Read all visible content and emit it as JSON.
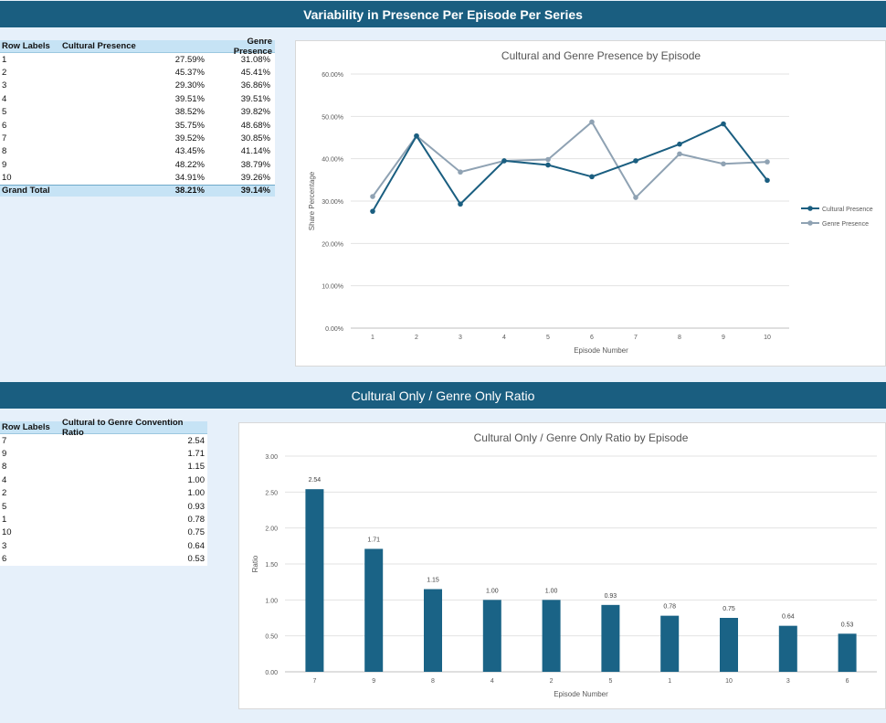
{
  "banners": {
    "top": "Variability in Presence Per Episode Per Series",
    "bottom": "Cultural Only / Genre Only Ratio"
  },
  "presence_table": {
    "headers": [
      "Row Labels",
      "Cultural Presence",
      "Genre Presence"
    ],
    "rows": [
      [
        "1",
        "27.59%",
        "31.08%"
      ],
      [
        "2",
        "45.37%",
        "45.41%"
      ],
      [
        "3",
        "29.30%",
        "36.86%"
      ],
      [
        "4",
        "39.51%",
        "39.51%"
      ],
      [
        "5",
        "38.52%",
        "39.82%"
      ],
      [
        "6",
        "35.75%",
        "48.68%"
      ],
      [
        "7",
        "39.52%",
        "30.85%"
      ],
      [
        "8",
        "43.45%",
        "41.14%"
      ],
      [
        "9",
        "48.22%",
        "38.79%"
      ],
      [
        "10",
        "34.91%",
        "39.26%"
      ]
    ],
    "total": [
      "Grand Total",
      "38.21%",
      "39.14%"
    ]
  },
  "ratio_table": {
    "headers": [
      "Row Labels",
      "Cultural to Genre Convention Ratio"
    ],
    "rows": [
      [
        "7",
        "2.54"
      ],
      [
        "9",
        "1.71"
      ],
      [
        "8",
        "1.15"
      ],
      [
        "4",
        "1.00"
      ],
      [
        "2",
        "1.00"
      ],
      [
        "5",
        "0.93"
      ],
      [
        "1",
        "0.78"
      ],
      [
        "10",
        "0.75"
      ],
      [
        "3",
        "0.64"
      ],
      [
        "6",
        "0.53"
      ]
    ]
  },
  "chart_data": [
    {
      "type": "line",
      "title": "Cultural and Genre Presence by Episode",
      "xlabel": "Episode Number",
      "ylabel": "Share Percentage",
      "categories": [
        "1",
        "2",
        "3",
        "4",
        "5",
        "6",
        "7",
        "8",
        "9",
        "10"
      ],
      "series": [
        {
          "name": "Cultural Presence",
          "color": "#1a5e80",
          "values": [
            27.59,
            45.37,
            29.3,
            39.51,
            38.52,
            35.75,
            39.52,
            43.45,
            48.22,
            34.91
          ]
        },
        {
          "name": "Genre Presence",
          "color": "#8fa2b3",
          "values": [
            31.08,
            45.41,
            36.86,
            39.51,
            39.82,
            48.68,
            30.85,
            41.14,
            38.79,
            39.26
          ]
        }
      ],
      "ylim": [
        0,
        60
      ],
      "yticks": [
        "0.00%",
        "10.00%",
        "20.00%",
        "30.00%",
        "40.00%",
        "50.00%",
        "60.00%"
      ],
      "grid": true,
      "legend": "right"
    },
    {
      "type": "bar",
      "title": "Cultural Only / Genre Only Ratio by Episode",
      "xlabel": "Episode Number",
      "ylabel": "Ratio",
      "categories": [
        "7",
        "9",
        "8",
        "4",
        "2",
        "5",
        "1",
        "10",
        "3",
        "6"
      ],
      "values": [
        2.54,
        1.71,
        1.15,
        1.0,
        1.0,
        0.93,
        0.78,
        0.75,
        0.64,
        0.53
      ],
      "labels": [
        "2.54",
        "1.71",
        "1.15",
        "1.00",
        "1.00",
        "0.93",
        "0.78",
        "0.75",
        "0.64",
        "0.53"
      ],
      "color": "#1a6386",
      "ylim": [
        0,
        3
      ],
      "yticks": [
        "0.00",
        "0.50",
        "1.00",
        "1.50",
        "2.00",
        "2.50",
        "3.00"
      ],
      "grid": true
    }
  ]
}
